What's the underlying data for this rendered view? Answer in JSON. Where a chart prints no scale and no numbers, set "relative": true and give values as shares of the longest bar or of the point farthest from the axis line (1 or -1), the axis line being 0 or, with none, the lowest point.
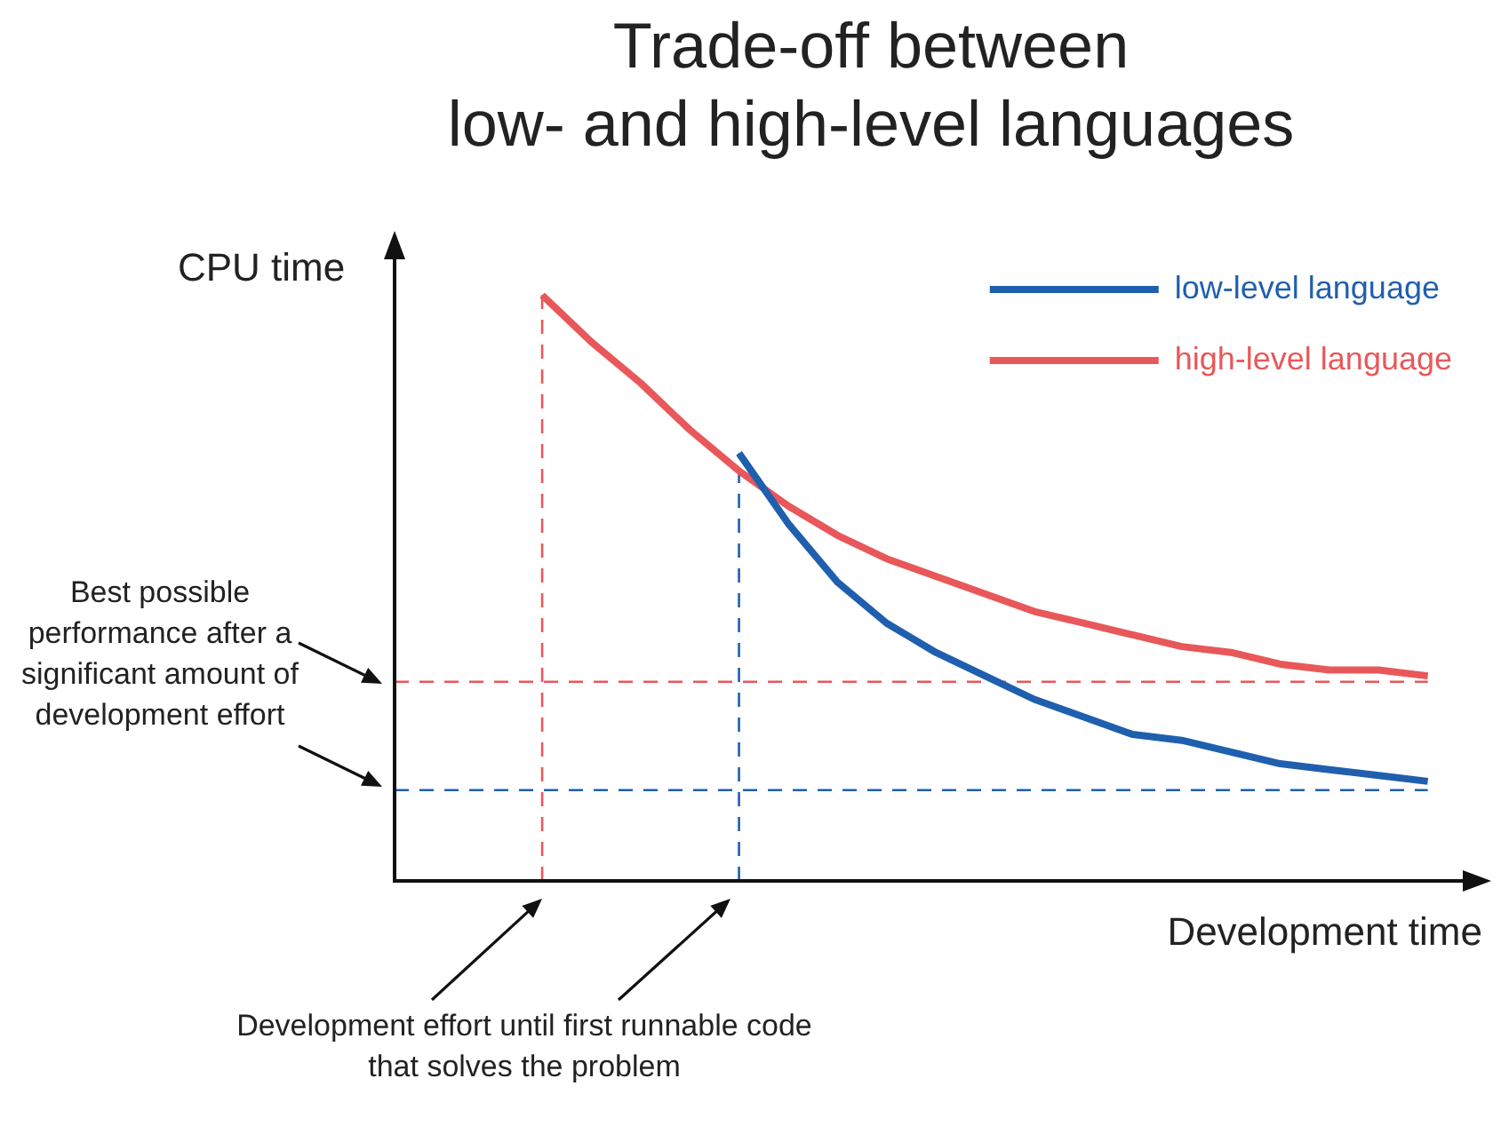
{
  "chart_data": {
    "type": "line",
    "title": "Trade-off between\nlow- and high-level languages",
    "xlabel": "Development time",
    "ylabel": "CPU time",
    "relative": true,
    "legend": "top right",
    "marker": "none",
    "line_style": "solid",
    "categories": [
      null,
      null,
      null,
      null,
      null,
      null,
      null,
      null,
      null,
      null,
      null,
      null,
      null,
      null,
      null,
      null,
      null,
      null,
      null,
      null,
      null,
      null,
      null
    ],
    "series": [
      {
        "name": "low-level language",
        "color": "#1f5fae",
        "values": [
          null,
          null,
          null,
          null,
          null,
          null,
          null,
          0.73,
          0.61,
          0.51,
          0.44,
          0.39,
          0.35,
          0.31,
          0.28,
          0.25,
          0.24,
          0.22,
          0.2,
          0.19,
          0.18,
          0.17,
          null
        ]
      },
      {
        "name": "high-level language",
        "color": "#e8585a",
        "values": [
          null,
          null,
          null,
          1.0,
          0.92,
          0.85,
          0.77,
          0.7,
          0.64,
          0.59,
          0.55,
          0.52,
          0.49,
          0.46,
          0.44,
          0.42,
          0.4,
          0.39,
          0.37,
          0.36,
          0.36,
          0.35,
          null
        ]
      }
    ],
    "ref_lines": [
      {
        "axis": "y",
        "value": 0.34,
        "color": "#e8585a",
        "line_style": "dashed"
      },
      {
        "axis": "y",
        "value": 0.155,
        "color": "#1f5fae",
        "line_style": "dashed"
      },
      {
        "axis": "x",
        "color": "#e8585a",
        "line_style": "dashed"
      },
      {
        "axis": "x",
        "color": "#1f5fae",
        "line_style": "dashed"
      }
    ],
    "annotations": [
      "Best possible performance after a significant amount of development effort",
      "Development effort until first runnable code that solves the problem"
    ]
  }
}
